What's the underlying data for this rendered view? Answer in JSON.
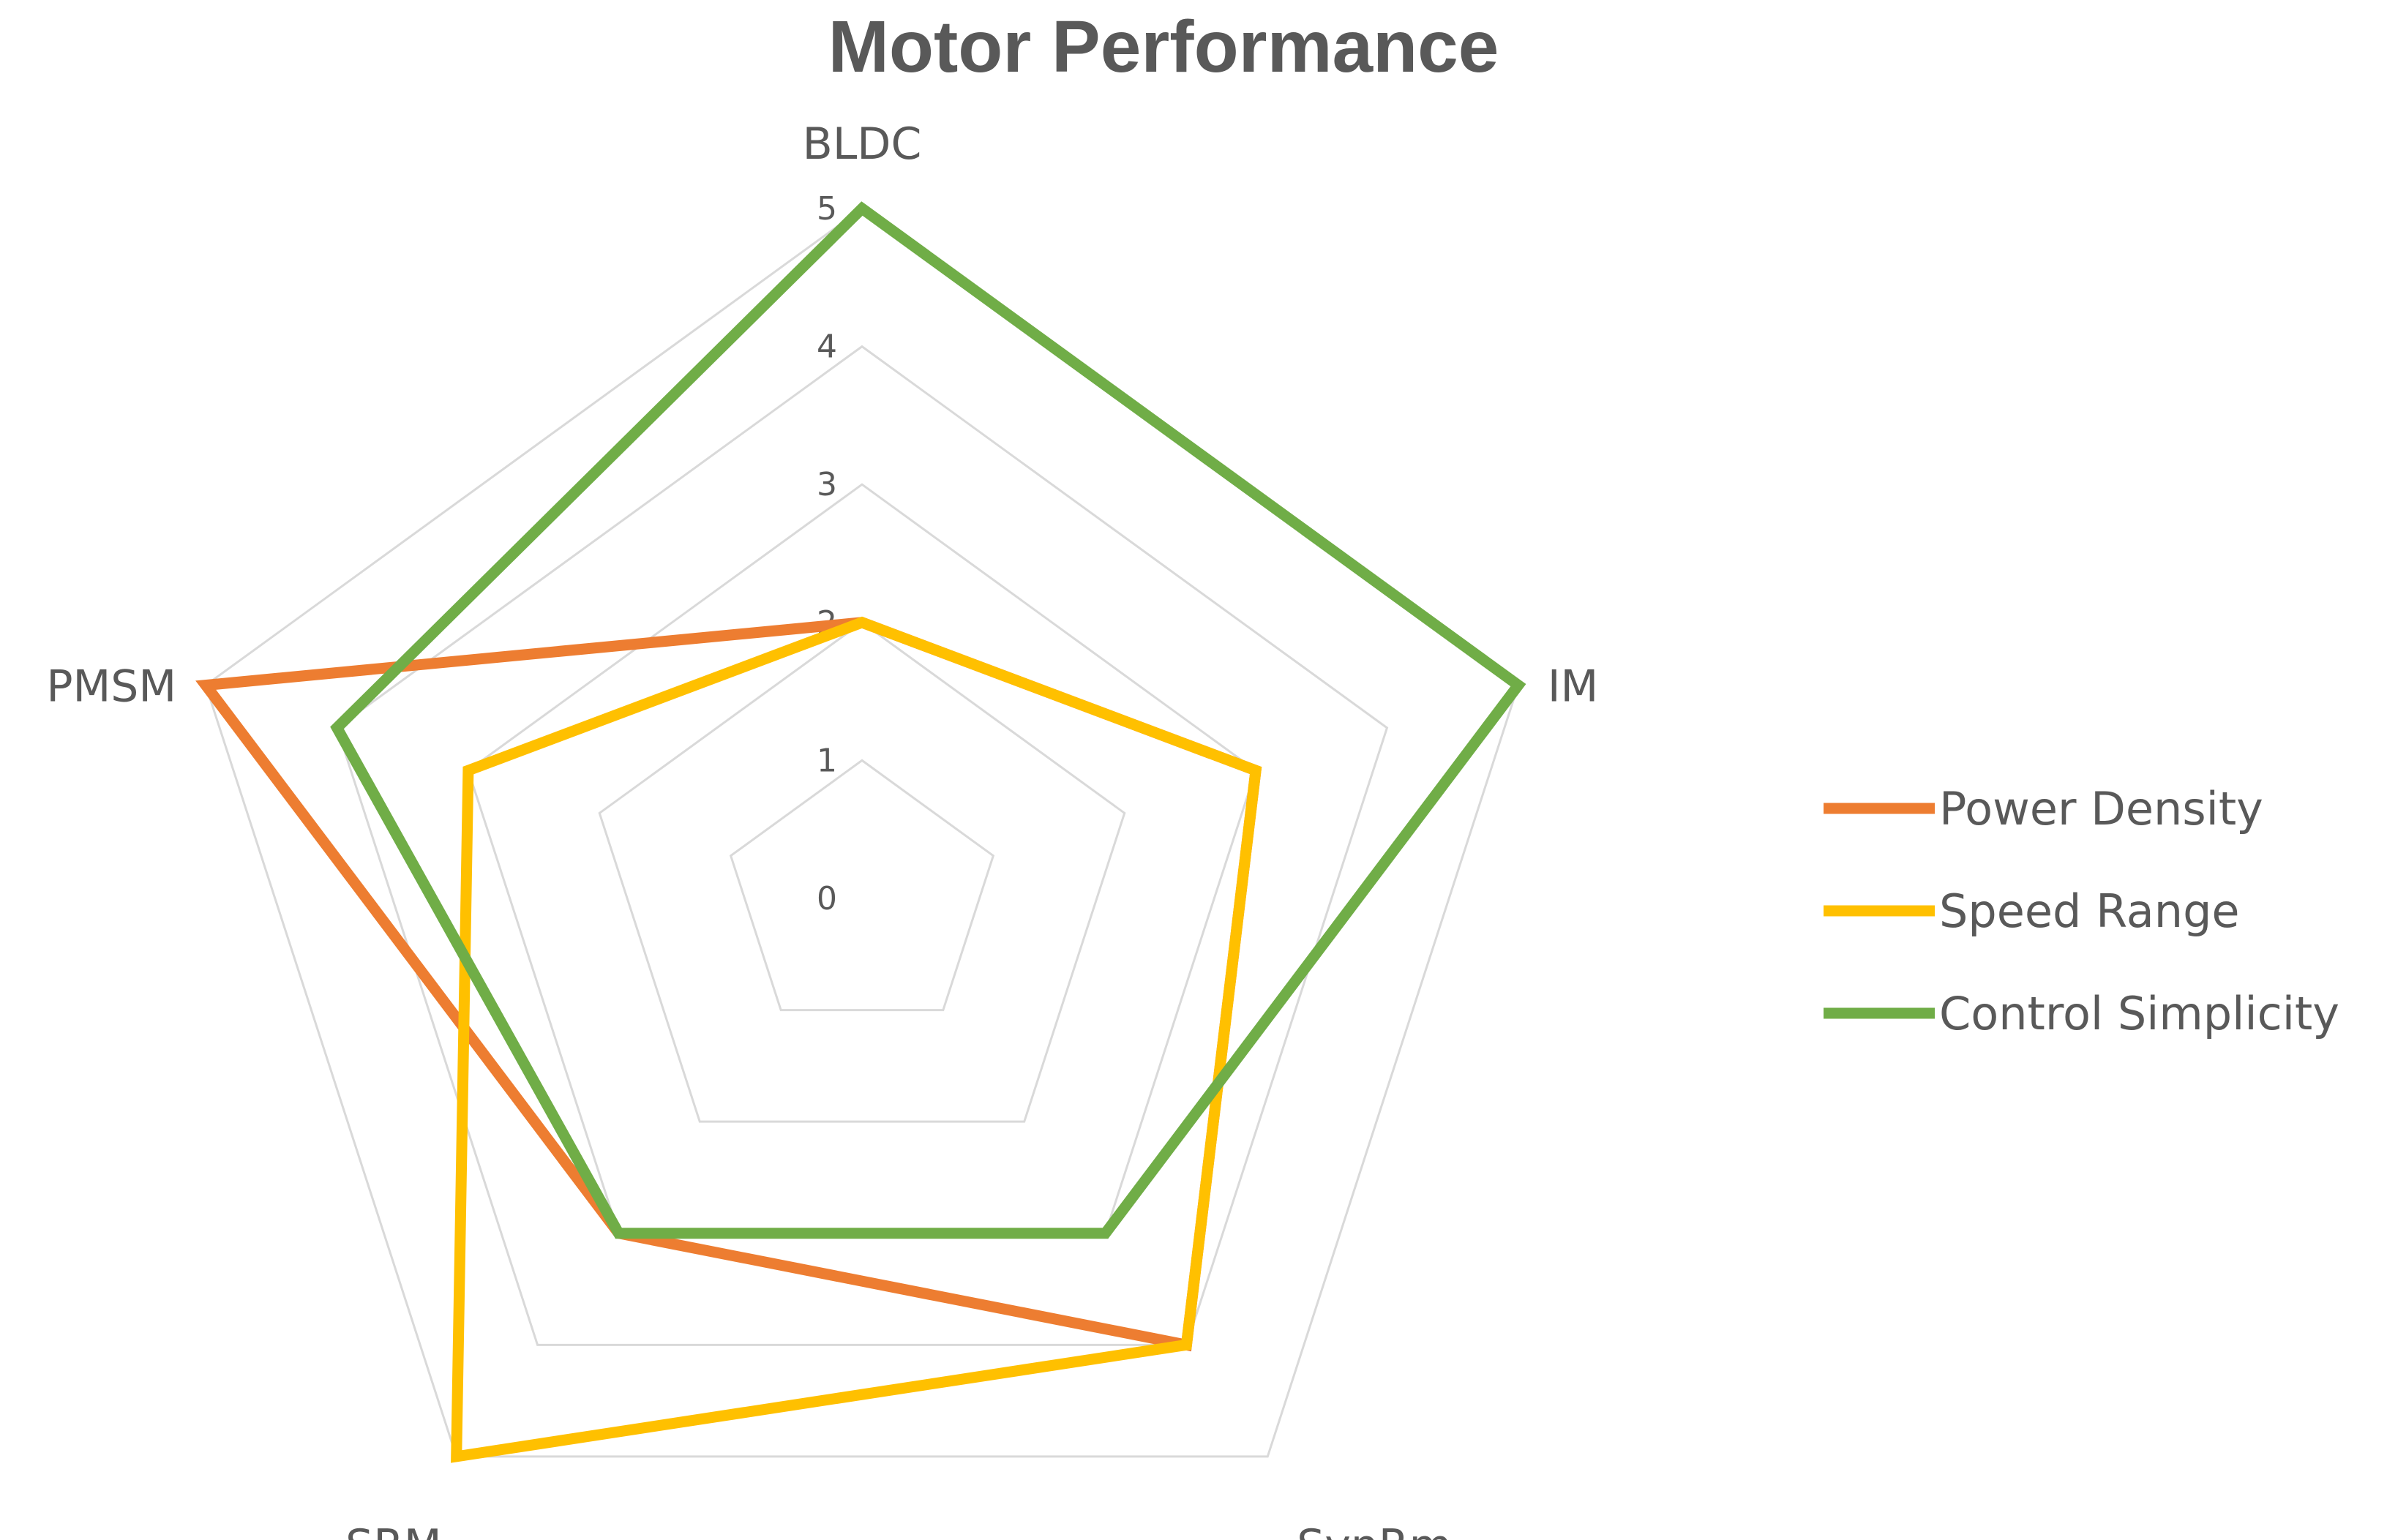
{
  "chart_data": {
    "type": "radar",
    "title": "Motor Performance",
    "categories": [
      "BLDC",
      "IM",
      "SynRm",
      "SRM",
      "PMSM"
    ],
    "range": [
      0,
      5
    ],
    "ticks": [
      "0",
      "1",
      "2",
      "3",
      "4",
      "5"
    ],
    "grid": true,
    "legend_position": "right",
    "series": [
      {
        "name": "Power Density",
        "color": "#ED7D31",
        "values": [
          2,
          3,
          4,
          3,
          5
        ]
      },
      {
        "name": "Speed Range",
        "color": "#FFC000",
        "values": [
          2,
          3,
          4,
          5,
          3
        ]
      },
      {
        "name": "Control Simplicity",
        "color": "#70AD47",
        "values": [
          5,
          5,
          3,
          3,
          4
        ]
      }
    ]
  }
}
